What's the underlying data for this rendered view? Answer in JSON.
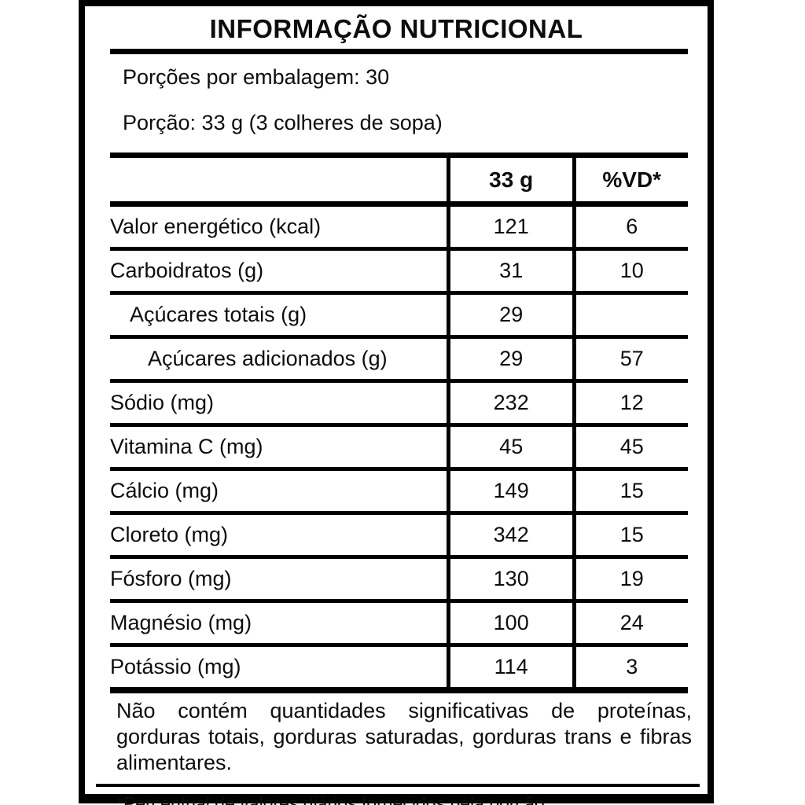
{
  "label": {
    "title": "INFORMAÇÃO NUTRICIONAL",
    "servings_per_package": "Porções por embalagem: 30",
    "portion_size": "Porção: 33 g (3 colheres de sopa)",
    "table": {
      "columns": [
        "",
        "33 g",
        "%VD*"
      ],
      "rows": [
        {
          "name": "Valor energético (kcal)",
          "amount": "121",
          "vd": "6",
          "indent": 0
        },
        {
          "name": "Carboidratos (g)",
          "amount": "31",
          "vd": "10",
          "indent": 0
        },
        {
          "name": "Açúcares totais (g)",
          "amount": "29",
          "vd": "",
          "indent": 1
        },
        {
          "name": "Açúcares adicionados (g)",
          "amount": "29",
          "vd": "57",
          "indent": 2
        },
        {
          "name": "Sódio (mg)",
          "amount": "232",
          "vd": "12",
          "indent": 0
        },
        {
          "name": "Vitamina C (mg)",
          "amount": "45",
          "vd": "45",
          "indent": 0
        },
        {
          "name": "Cálcio (mg)",
          "amount": "149",
          "vd": "15",
          "indent": 0
        },
        {
          "name": "Cloreto (mg)",
          "amount": "342",
          "vd": "15",
          "indent": 0
        },
        {
          "name": "Fósforo (mg)",
          "amount": "130",
          "vd": "19",
          "indent": 0
        },
        {
          "name": "Magnésio (mg)",
          "amount": "100",
          "vd": "24",
          "indent": 0
        },
        {
          "name": "Potássio (mg)",
          "amount": "114",
          "vd": "3",
          "indent": 0
        }
      ]
    },
    "no_significant_amounts_note": "Não contém quantidades significativas de proteínas, gorduras totais, gorduras saturadas, gorduras trans e fibras alimentares.",
    "footnote": "*Percentual de valores diários fornecidos pela porção.",
    "colors": {
      "ink": "#0d0d0d",
      "border": "#000000",
      "background": "#ffffff"
    }
  }
}
